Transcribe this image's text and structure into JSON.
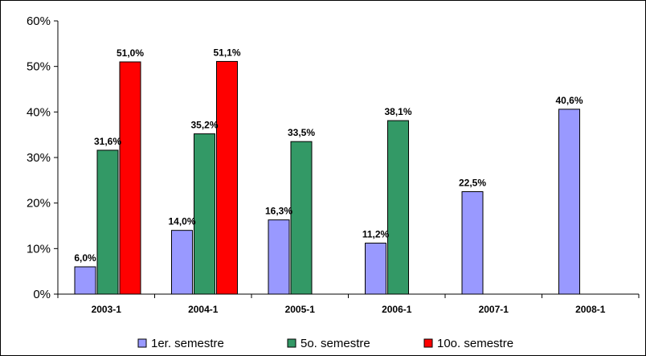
{
  "chart_data": {
    "type": "bar",
    "title": "",
    "categories": [
      "2003-1",
      "2004-1",
      "2005-1",
      "2006-1",
      "2007-1",
      "2008-1"
    ],
    "series": [
      {
        "name": "1er. semestre",
        "color": "#9999ff",
        "values": [
          6.0,
          14.0,
          16.3,
          11.2,
          22.5,
          40.6
        ],
        "labels": [
          "6,0%",
          "14,0%",
          "16,3%",
          "11,2%",
          "22,5%",
          "40,6%"
        ]
      },
      {
        "name": "5o. semestre",
        "color": "#339966",
        "values": [
          31.6,
          35.2,
          33.5,
          38.1,
          null,
          null
        ],
        "labels": [
          "31,6%",
          "35,2%",
          "33,5%",
          "38,1%",
          null,
          null
        ]
      },
      {
        "name": "10o. semestre",
        "color": "#ff0000",
        "values": [
          51.0,
          51.1,
          null,
          null,
          null,
          null
        ],
        "labels": [
          "51,0%",
          "51,1%",
          null,
          null,
          null,
          null
        ]
      }
    ],
    "ylim": [
      0,
      60
    ],
    "yticks": [
      0,
      10,
      20,
      30,
      40,
      50,
      60
    ],
    "ytick_labels": [
      "0%",
      "10%",
      "20%",
      "30%",
      "40%",
      "50%",
      "60%"
    ],
    "grid": false,
    "legend_position": "bottom"
  }
}
